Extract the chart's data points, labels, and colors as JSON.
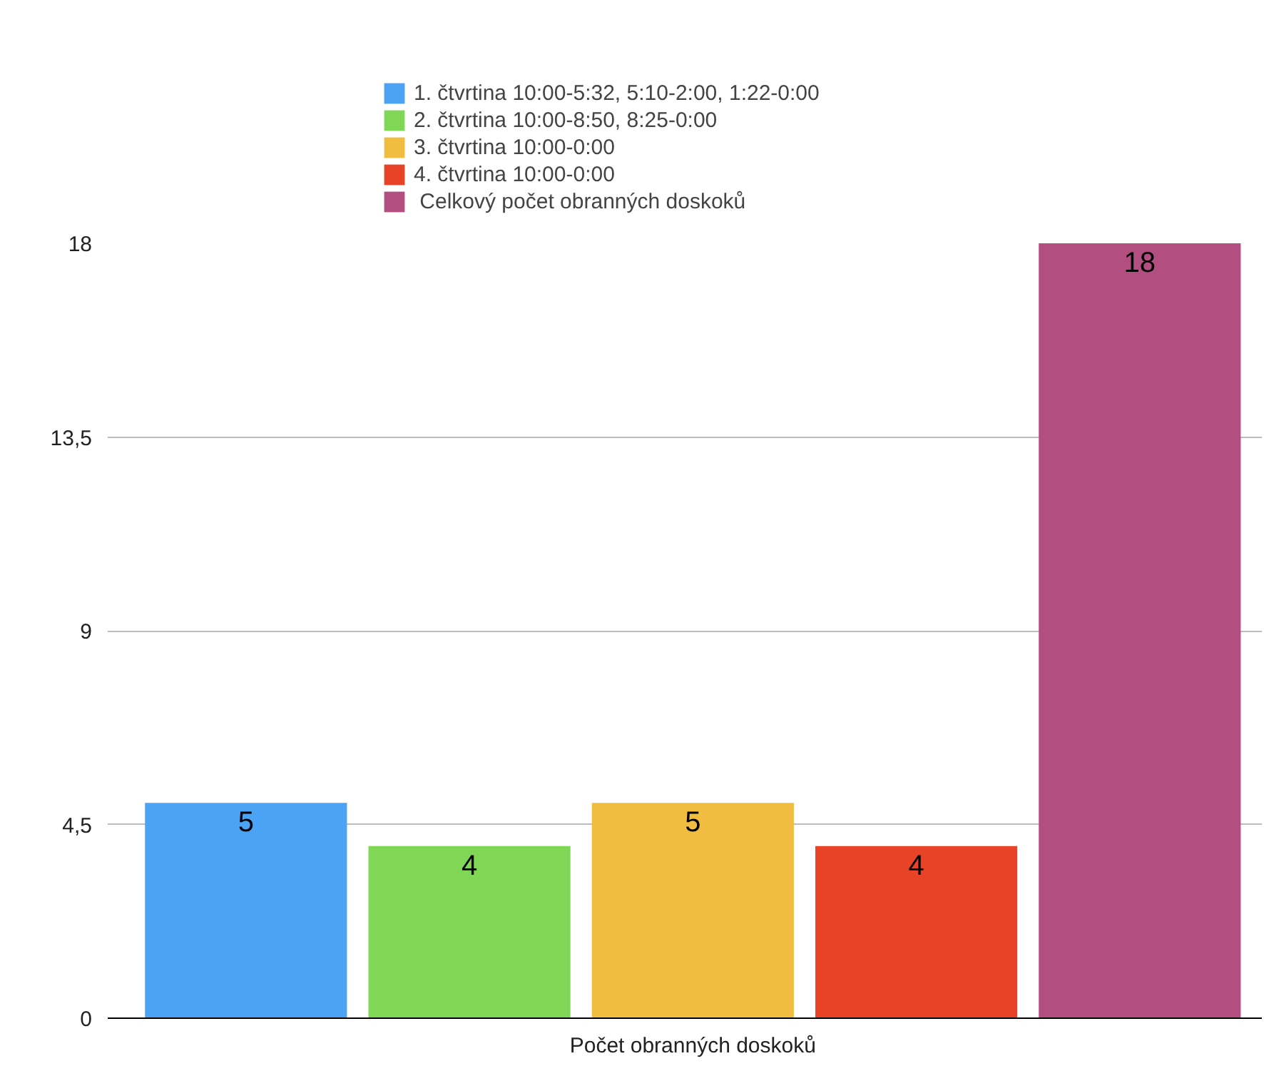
{
  "chart_data": {
    "type": "bar",
    "categories": [
      "Počet obranných doskoků"
    ],
    "series": [
      {
        "name": "1. čtvrtina 10:00-5:32, 5:10-2:00, 1:22-0:00",
        "color": "#4aa3f5",
        "values": [
          5
        ]
      },
      {
        "name": "2. čtvrtina 10:00-8:50, 8:25-0:00",
        "color": "#80d655",
        "values": [
          4
        ]
      },
      {
        "name": "3. čtvrtina 10:00-0:00",
        "color": "#f0bd41",
        "values": [
          5
        ]
      },
      {
        "name": "4. čtvrtina 10:00-0:00",
        "color": "#e84326",
        "values": [
          4
        ]
      },
      {
        "name": " Celkový počet obranných doskoků",
        "color": "#b24e80",
        "values": [
          18
        ]
      }
    ],
    "ylim": [
      0,
      18
    ],
    "yticks": [
      0,
      {
        "value": 4.5,
        "label": "4,5"
      },
      9,
      {
        "value": 13.5,
        "label": "13,5"
      },
      18
    ],
    "grid": "y",
    "legend": "top",
    "data_labels": true
  }
}
